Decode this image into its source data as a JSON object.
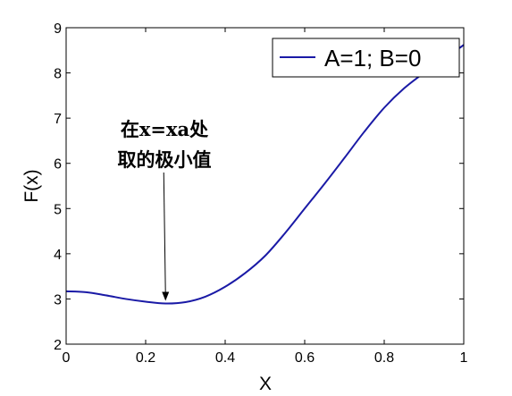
{
  "chart_data": {
    "type": "line",
    "title": "",
    "xlabel": "X",
    "ylabel": "F(x)",
    "xlim": [
      0,
      1
    ],
    "ylim": [
      2,
      9
    ],
    "xticks": [
      0,
      0.2,
      0.4,
      0.6,
      0.8,
      1
    ],
    "xtick_labels": [
      "0",
      "0.2",
      "0.4",
      "0.6",
      "0.8",
      "1"
    ],
    "yticks": [
      2,
      3,
      4,
      5,
      6,
      7,
      8,
      9
    ],
    "ytick_labels": [
      "2",
      "3",
      "4",
      "5",
      "6",
      "7",
      "8",
      "9"
    ],
    "grid": false,
    "legend_position": "top-right",
    "line_color": "#1a1aa6",
    "series": [
      {
        "name": "A=1; B=0",
        "x": [
          0,
          0.05,
          0.1,
          0.15,
          0.2,
          0.25,
          0.3,
          0.35,
          0.4,
          0.45,
          0.5,
          0.55,
          0.6,
          0.65,
          0.7,
          0.75,
          0.8,
          0.85,
          0.9,
          0.95,
          1.0
        ],
        "y": [
          3.17,
          3.15,
          3.08,
          3.0,
          2.94,
          2.9,
          2.93,
          3.05,
          3.27,
          3.57,
          3.95,
          4.45,
          5.0,
          5.55,
          6.12,
          6.7,
          7.23,
          7.66,
          8.0,
          8.3,
          8.62
        ]
      }
    ],
    "annotation": {
      "line1": "在x=xa处",
      "line2": "取的极小值",
      "target_x": 0.25,
      "target_y": 2.9
    }
  }
}
